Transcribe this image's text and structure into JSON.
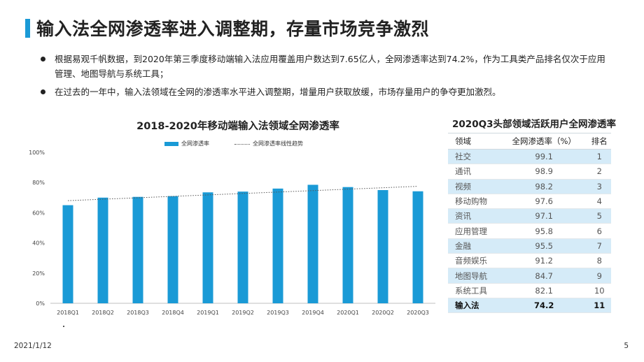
{
  "slide": {
    "title": "输入法全网渗透率进入调整期，存量市场竞争激烈",
    "bullets": [
      "根据易观千帆数据，到2020年第三季度移动端输入法应用覆盖用户数达到7.65亿人，全网渗透率达到74.2%，作为工具类产品排名仅次于应用管理、地图导航与系统工具；",
      "在过去的一年中，输入法领域在全网的渗透率水平进入调整期，增量用户获取放缓，市场存量用户的争夺更加激烈。"
    ],
    "date": "2021/1/12",
    "page": "5"
  },
  "colors": {
    "accent": "#1a9ad6",
    "table_stripe": "#d5ebf8"
  },
  "chart_data": [
    {
      "type": "bar",
      "title": "2018-2020年移动端输入法领域全网渗透率",
      "categories": [
        "2018Q1",
        "2018Q2",
        "2018Q3",
        "2018Q4",
        "2019Q1",
        "2019Q2",
        "2019Q3",
        "2019Q4",
        "2020Q1",
        "2020Q2",
        "2020Q3"
      ],
      "series": [
        {
          "name": "全网渗透率",
          "values": [
            65,
            70,
            70.5,
            71,
            73.5,
            74,
            76,
            78.5,
            77,
            75,
            74.2
          ]
        }
      ],
      "trendline": {
        "name": "全网渗透率线性趋势",
        "style": "dotted",
        "start": 68,
        "end": 77.5
      },
      "ylim": [
        0,
        100
      ],
      "yticks": [
        "0%",
        "20%",
        "40%",
        "60%",
        "80%",
        "100%"
      ],
      "ytick_values": [
        0,
        20,
        40,
        60,
        80,
        100
      ],
      "gridlines": false,
      "legend_position": "top-center"
    },
    {
      "type": "table",
      "title": "2020Q3头部领域活跃用户全网渗透率",
      "columns": [
        "领域",
        "全网渗透率（%）",
        "排名"
      ],
      "rows": [
        [
          "社交",
          "99.1",
          "1"
        ],
        [
          "通讯",
          "98.9",
          "2"
        ],
        [
          "视频",
          "98.2",
          "3"
        ],
        [
          "移动购物",
          "97.6",
          "4"
        ],
        [
          "资讯",
          "97.1",
          "5"
        ],
        [
          "应用管理",
          "95.8",
          "6"
        ],
        [
          "金融",
          "95.5",
          "7"
        ],
        [
          "音频娱乐",
          "91.2",
          "8"
        ],
        [
          "地图导航",
          "84.7",
          "9"
        ],
        [
          "系统工具",
          "82.1",
          "10"
        ],
        [
          "输入法",
          "74.2",
          "11"
        ]
      ],
      "highlight_row": "输入法"
    }
  ]
}
